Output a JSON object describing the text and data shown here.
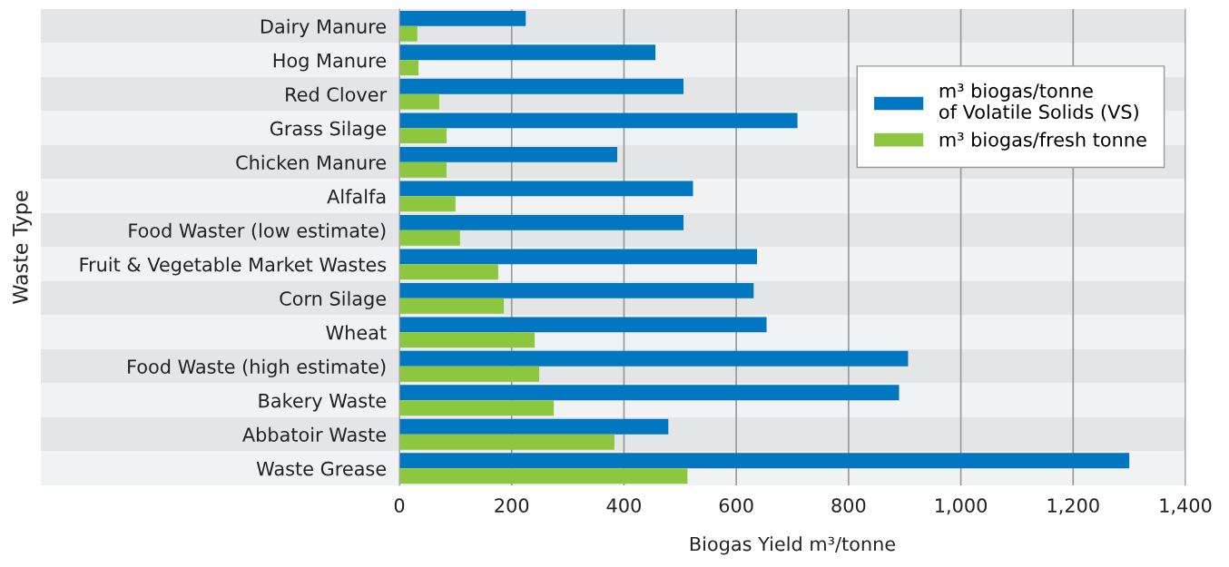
{
  "chart_data": {
    "type": "bar",
    "orientation": "horizontal",
    "xlabel": "Biogas Yield m³/tonne",
    "ylabel": "Waste Type",
    "categories": [
      "Dairy Manure",
      "Hog Manure",
      "Red Clover",
      "Grass Silage",
      "Chicken Manure",
      "Alfalfa",
      "Food Waster (low estimate)",
      "Fruit & Vegetable Market Wastes",
      "Corn Silage",
      "Wheat",
      "Food Waste (high estimate)",
      "Bakery Waste",
      "Abbatoir Waste",
      "Waste Grease"
    ],
    "series": [
      {
        "name": "m³ biogas/tonne\nof Volatile Solids (VS)",
        "color": "#0077c0",
        "values": [
          225,
          456,
          506,
          709,
          388,
          523,
          506,
          637,
          631,
          654,
          906,
          890,
          479,
          1300
        ]
      },
      {
        "name": "m³ biogas/fresh tonne",
        "color": "#8dc63f",
        "values": [
          32,
          34,
          71,
          84,
          84,
          100,
          108,
          176,
          186,
          241,
          249,
          275,
          383,
          513
        ]
      }
    ],
    "xlim": [
      0,
      1400
    ],
    "xticks": [
      0,
      200,
      400,
      600,
      800,
      {
        "value": 1000,
        "label": "1,000"
      },
      {
        "value": 1200,
        "label": "1,200"
      },
      {
        "value": 1400,
        "label": "1,400"
      }
    ],
    "grid": "x",
    "legend": "top right"
  }
}
